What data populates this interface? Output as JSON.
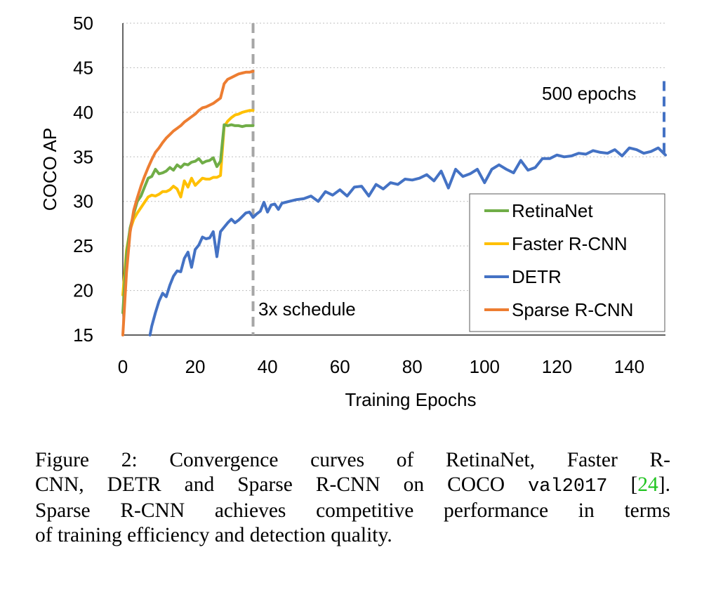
{
  "chart_data": {
    "type": "line",
    "xlabel": "Training Epochs",
    "ylabel": "COCO AP",
    "xlim": [
      0,
      150
    ],
    "ylim": [
      15,
      50
    ],
    "x_ticks": [
      "0",
      "20",
      "40",
      "60",
      "80",
      "100",
      "120",
      "140"
    ],
    "y_ticks": [
      "15",
      "20",
      "25",
      "30",
      "35",
      "40",
      "45",
      "50"
    ],
    "grid": "horizontal-dotted",
    "legend_position": "bottom-right",
    "colors": {
      "RetinaNet": "#70ad47",
      "Faster R-CNN": "#ffc000",
      "DETR": "#4472c4",
      "Sparse R-CNN": "#ed7d31",
      "schedule_line": "#a6a6a6"
    },
    "annotations": {
      "schedule_label": "3x schedule",
      "schedule_x": 36,
      "epochs_label": "500 epochs",
      "epochs_segment": [
        35,
        43.5
      ]
    },
    "series": [
      {
        "name": "RetinaNet",
        "x": [
          0,
          1,
          2,
          3,
          4,
          5,
          6,
          7,
          8,
          9,
          10,
          11,
          12,
          13,
          14,
          15,
          16,
          17,
          18,
          19,
          20,
          21,
          22,
          23,
          24,
          25,
          26,
          27,
          28,
          29,
          30,
          31,
          32,
          33,
          34,
          35,
          36
        ],
        "values": [
          17.5,
          24.0,
          27.0,
          28.6,
          30.0,
          30.6,
          31.6,
          32.6,
          32.8,
          33.6,
          33.1,
          33.2,
          33.4,
          33.8,
          33.5,
          34.1,
          33.8,
          34.2,
          34.1,
          34.4,
          34.5,
          34.8,
          34.3,
          34.5,
          34.6,
          34.9,
          33.9,
          34.5,
          38.6,
          38.5,
          38.6,
          38.5,
          38.5,
          38.4,
          38.5,
          38.5,
          38.5
        ]
      },
      {
        "name": "Faster R-CNN",
        "x": [
          0,
          1,
          2,
          3,
          4,
          5,
          6,
          7,
          8,
          9,
          10,
          11,
          12,
          13,
          14,
          15,
          16,
          17,
          18,
          19,
          20,
          21,
          22,
          23,
          24,
          25,
          26,
          27,
          28,
          29,
          30,
          31,
          32,
          33,
          34,
          35,
          36
        ],
        "values": [
          19.5,
          24.5,
          26.8,
          28.0,
          28.7,
          29.3,
          29.9,
          30.5,
          30.7,
          30.6,
          30.8,
          31.1,
          31.1,
          31.3,
          31.7,
          31.4,
          30.5,
          32.3,
          31.6,
          32.6,
          31.8,
          32.2,
          32.6,
          32.5,
          32.5,
          32.7,
          32.7,
          32.9,
          38.4,
          39.0,
          39.4,
          39.7,
          39.8,
          40.0,
          40.1,
          40.2,
          40.2
        ]
      },
      {
        "name": "DETR",
        "x": [
          7.5,
          8,
          9,
          10,
          11,
          12,
          13,
          14,
          15,
          16,
          17,
          18,
          19,
          20,
          21,
          22,
          23,
          24,
          25,
          26,
          27,
          28,
          29,
          30,
          31,
          32,
          33,
          34,
          35,
          36,
          37,
          38,
          39,
          40,
          41,
          42,
          43,
          44,
          45,
          46,
          48,
          50,
          52,
          54,
          56,
          58,
          60,
          62,
          64,
          66,
          68,
          70,
          72,
          74,
          76,
          78,
          80,
          82,
          84,
          86,
          88,
          90,
          92,
          94,
          96,
          98,
          100,
          102,
          104,
          106,
          108,
          110,
          112,
          114,
          116,
          118,
          120,
          122,
          124,
          126,
          128,
          130,
          132,
          134,
          136,
          138,
          140,
          142,
          144,
          146,
          148,
          150
        ],
        "values": [
          15.0,
          16.0,
          17.5,
          18.8,
          19.7,
          19.3,
          20.6,
          21.6,
          22.2,
          22.1,
          23.6,
          24.3,
          22.6,
          24.6,
          25.1,
          26.0,
          25.8,
          25.9,
          26.6,
          23.8,
          26.6,
          27.1,
          27.6,
          28.0,
          27.6,
          27.9,
          28.3,
          28.7,
          28.8,
          28.2,
          28.6,
          28.9,
          29.9,
          28.8,
          29.6,
          29.7,
          29.1,
          29.8,
          29.9,
          30.0,
          30.2,
          30.3,
          30.6,
          30.0,
          31.1,
          30.7,
          31.3,
          30.6,
          31.6,
          31.7,
          30.6,
          31.9,
          31.4,
          32.1,
          31.9,
          32.5,
          32.4,
          32.6,
          33.0,
          32.3,
          33.4,
          31.5,
          33.6,
          32.8,
          33.1,
          33.6,
          32.1,
          33.6,
          34.1,
          33.6,
          33.2,
          34.6,
          33.5,
          33.8,
          34.8,
          34.8,
          35.2,
          35.0,
          35.1,
          35.4,
          35.3,
          35.7,
          35.5,
          35.4,
          35.8,
          35.1,
          36.0,
          35.8,
          35.4,
          35.6,
          36.0,
          35.2
        ]
      },
      {
        "name": "Sparse R-CNN",
        "x": [
          0,
          1,
          2,
          3,
          4,
          5,
          6,
          7,
          8,
          9,
          10,
          11,
          12,
          13,
          14,
          15,
          16,
          17,
          18,
          19,
          20,
          21,
          22,
          23,
          24,
          25,
          26,
          27,
          28,
          29,
          30,
          31,
          32,
          33,
          34,
          35,
          36
        ],
        "values": [
          15.0,
          22.0,
          26.5,
          29.0,
          30.4,
          31.7,
          32.8,
          33.8,
          34.7,
          35.5,
          36.0,
          36.6,
          37.1,
          37.5,
          37.9,
          38.2,
          38.5,
          38.9,
          39.2,
          39.5,
          39.8,
          40.2,
          40.5,
          40.6,
          40.8,
          41.0,
          41.3,
          41.6,
          43.2,
          43.7,
          43.9,
          44.1,
          44.3,
          44.4,
          44.5,
          44.5,
          44.6
        ]
      }
    ]
  },
  "caption": {
    "line1": "Figure 2:  Convergence curves of RetinaNet, Faster R-",
    "line2_pre": "CNN, DETR and Sparse R-CNN on COCO ",
    "line2_code": "val2017",
    "line2_bracket_open": " [",
    "line2_ref": "24",
    "line2_bracket_close": "].",
    "line3": "Sparse R-CNN achieves competitive performance in terms",
    "line4": "of training efficiency and detection quality."
  }
}
